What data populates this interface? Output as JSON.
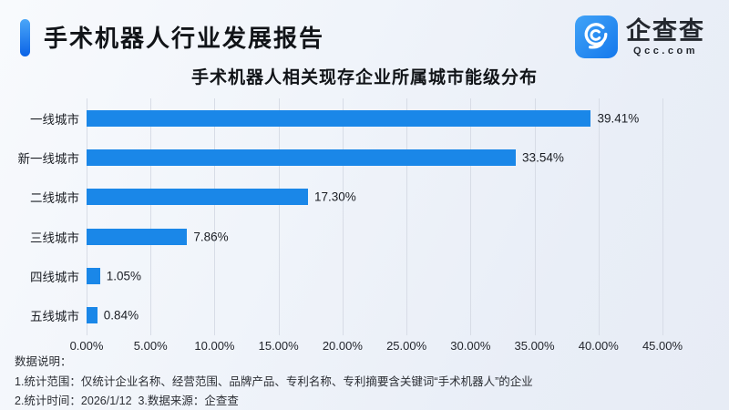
{
  "header": {
    "title": "手术机器人行业发展报告",
    "logo": {
      "name": "企查查",
      "domain": "Qcc.com"
    }
  },
  "chart_data": {
    "type": "bar",
    "orientation": "horizontal",
    "title": "手术机器人相关现存企业所属城市能级分布",
    "categories": [
      "一线城市",
      "新一线城市",
      "二线城市",
      "三线城市",
      "四线城市",
      "五线城市"
    ],
    "values": [
      39.41,
      33.54,
      17.3,
      7.86,
      1.05,
      0.84
    ],
    "value_labels": [
      "39.41%",
      "33.54%",
      "17.30%",
      "7.86%",
      "1.05%",
      "0.84%"
    ],
    "xlabel": "",
    "ylabel": "",
    "xlim": [
      0,
      45
    ],
    "x_ticks": [
      "0.00%",
      "5.00%",
      "10.00%",
      "15.00%",
      "20.00%",
      "25.00%",
      "30.00%",
      "35.00%",
      "40.00%",
      "45.00%"
    ],
    "x_tick_values": [
      0,
      5,
      10,
      15,
      20,
      25,
      30,
      35,
      40,
      45
    ],
    "grid": "vertical-only",
    "legend": "none",
    "bar_color": "#1a87e8"
  },
  "notes": {
    "heading": "数据说明：",
    "line1": "1.统计范围：仅统计企业名称、经营范围、品牌产品、专利名称、专利摘要含关键词“手术机器人”的企业",
    "line2": "2.统计时间：2026/1/12  3.数据来源：企查查"
  },
  "colors": {
    "bar": "#1a87e8",
    "accent_top": "#4aa6f8",
    "accent_bottom": "#0b63e6",
    "logo_square_light": "#41a3f7",
    "logo_square_dark": "#1478ec",
    "gridline": "#d7dce6"
  }
}
